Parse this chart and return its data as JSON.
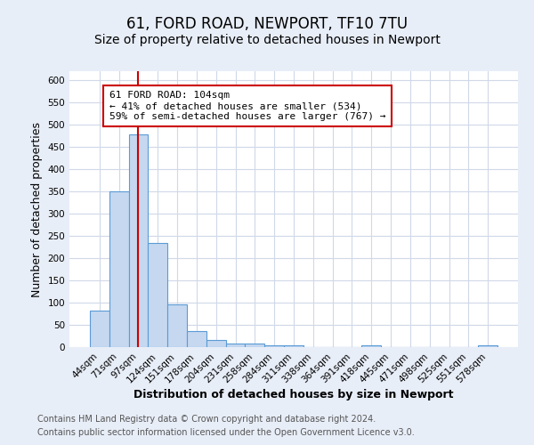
{
  "title": "61, FORD ROAD, NEWPORT, TF10 7TU",
  "subtitle": "Size of property relative to detached houses in Newport",
  "xlabel": "Distribution of detached houses by size in Newport",
  "ylabel": "Number of detached properties",
  "categories": [
    "44sqm",
    "71sqm",
    "97sqm",
    "124sqm",
    "151sqm",
    "178sqm",
    "204sqm",
    "231sqm",
    "258sqm",
    "284sqm",
    "311sqm",
    "338sqm",
    "364sqm",
    "391sqm",
    "418sqm",
    "445sqm",
    "471sqm",
    "498sqm",
    "525sqm",
    "551sqm",
    "578sqm"
  ],
  "values": [
    82,
    350,
    478,
    235,
    96,
    37,
    16,
    8,
    8,
    5,
    5,
    0,
    0,
    0,
    5,
    0,
    0,
    0,
    0,
    0,
    5
  ],
  "bar_color": "#c5d8f0",
  "bar_edge_color": "#5b9bd5",
  "property_line_x": 2.0,
  "annotation_text": "61 FORD ROAD: 104sqm\n← 41% of detached houses are smaller (534)\n59% of semi-detached houses are larger (767) →",
  "annotation_box_color": "#ffffff",
  "annotation_box_edge_color": "#cc0000",
  "line_color": "#cc0000",
  "footer_line1": "Contains HM Land Registry data © Crown copyright and database right 2024.",
  "footer_line2": "Contains public sector information licensed under the Open Government Licence v3.0.",
  "ylim": [
    0,
    620
  ],
  "yticks": [
    0,
    50,
    100,
    150,
    200,
    250,
    300,
    350,
    400,
    450,
    500,
    550,
    600
  ],
  "fig_background": "#e8eef8",
  "plot_background": "#ffffff",
  "grid_color": "#d0d8e8",
  "title_fontsize": 12,
  "subtitle_fontsize": 10,
  "axis_label_fontsize": 9,
  "tick_fontsize": 7.5,
  "annotation_fontsize": 8,
  "footer_fontsize": 7
}
